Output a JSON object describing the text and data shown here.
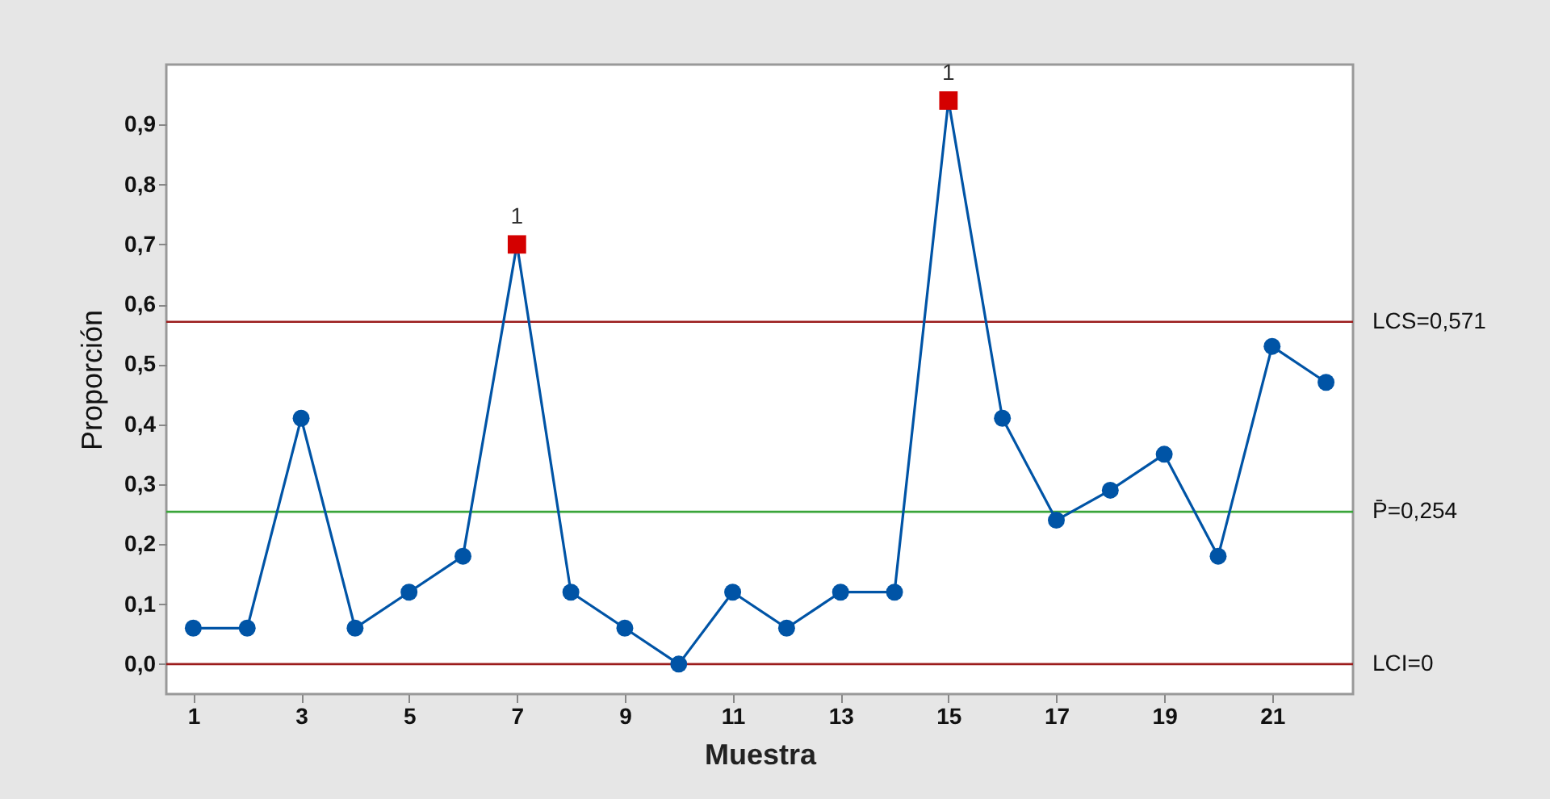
{
  "chart_data": {
    "type": "line",
    "xlabel": "Muestra",
    "ylabel": "Proporción",
    "x": [
      1,
      2,
      3,
      4,
      5,
      6,
      7,
      8,
      9,
      10,
      11,
      12,
      13,
      14,
      15,
      16,
      17,
      18,
      19,
      20,
      21,
      22
    ],
    "series": [
      {
        "type": "line",
        "color": "#0054a6",
        "marker": "circle",
        "values": [
          0.06,
          0.06,
          0.41,
          0.06,
          0.12,
          0.18,
          0.7,
          0.12,
          0.06,
          0.0,
          0.12,
          0.06,
          0.12,
          0.12,
          0.94,
          0.41,
          0.24,
          0.29,
          0.35,
          0.18,
          0.53,
          0.47
        ]
      },
      {
        "type": "scatter",
        "color": "#d40000",
        "marker": "square",
        "x": [
          7,
          15
        ],
        "values": [
          0.7,
          0.94
        ]
      }
    ],
    "xlim": [
      0.5,
      22.5
    ],
    "xticks": [
      1,
      3,
      5,
      7,
      9,
      11,
      13,
      15,
      17,
      19,
      21
    ],
    "ylim": [
      -0.05,
      1.0
    ],
    "yticks": [
      {
        "value": 0,
        "label": "0,0"
      },
      {
        "value": 0.1,
        "label": "0,1"
      },
      {
        "value": 0.2,
        "label": "0,2"
      },
      {
        "value": 0.3,
        "label": "0,3"
      },
      {
        "value": 0.4,
        "label": "0,4"
      },
      {
        "value": 0.5,
        "label": "0,5"
      },
      {
        "value": 0.6,
        "label": "0,6"
      },
      {
        "value": 0.7,
        "label": "0,7"
      },
      {
        "value": 0.8,
        "label": "0,8"
      },
      {
        "value": 0.9,
        "label": "0,9"
      }
    ],
    "ref_lines": [
      {
        "axis": "y",
        "value": 0.571,
        "label": "LCS=0,571",
        "color": "#9b1c1c"
      },
      {
        "axis": "y",
        "value": 0.254,
        "label": "P̄=0,254",
        "color": "#3aa53a"
      },
      {
        "axis": "y",
        "value": 0,
        "label": "LCI=0",
        "color": "#9b1c1c"
      }
    ],
    "annotations": [
      {
        "text": "1",
        "x": 7,
        "y": 0.7
      },
      {
        "text": "1",
        "x": 15,
        "y": 0.94
      }
    ],
    "grid": false
  }
}
